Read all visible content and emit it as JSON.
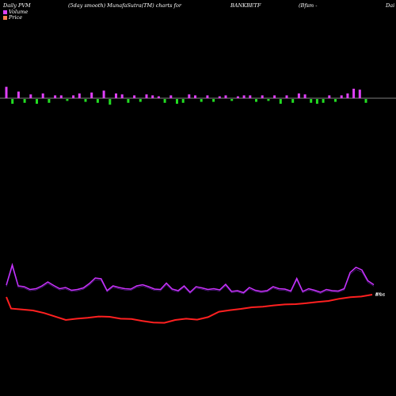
{
  "header": {
    "left": "Daily PVM",
    "middle": "(5day smooth) MunafaSutra(TM) charts for",
    "symbol": "BANKBETF",
    "right": "(Bfsm -",
    "far_right": "Dai"
  },
  "legend": [
    {
      "label": "Volume",
      "color": "#e040fb"
    },
    {
      "label": "Price",
      "color": "#ff7f50"
    }
  ],
  "colors": {
    "background": "#000000",
    "volume_up": "#e040fb",
    "volume_down": "#22dd22",
    "price_line": "#ff2020",
    "volume_line": "#cc33ff",
    "axis": "#ffffff"
  },
  "chart_data": {
    "type": "line",
    "bars": [
      {
        "dir": "up",
        "value": 12
      },
      {
        "dir": "down",
        "value": 5
      },
      {
        "dir": "up",
        "value": 7
      },
      {
        "dir": "down",
        "value": 4
      },
      {
        "dir": "up",
        "value": 4
      },
      {
        "dir": "down",
        "value": 5
      },
      {
        "dir": "up",
        "value": 5
      },
      {
        "dir": "down",
        "value": 4
      },
      {
        "dir": "up",
        "value": 3
      },
      {
        "dir": "up",
        "value": 3
      },
      {
        "dir": "down",
        "value": 2
      },
      {
        "dir": "up",
        "value": 3
      },
      {
        "dir": "up",
        "value": 5
      },
      {
        "dir": "down",
        "value": 3
      },
      {
        "dir": "up",
        "value": 6
      },
      {
        "dir": "down",
        "value": 4
      },
      {
        "dir": "up",
        "value": 8
      },
      {
        "dir": "down",
        "value": 6
      },
      {
        "dir": "up",
        "value": 5
      },
      {
        "dir": "up",
        "value": 4
      },
      {
        "dir": "down",
        "value": 4
      },
      {
        "dir": "up",
        "value": 3
      },
      {
        "dir": "down",
        "value": 3
      },
      {
        "dir": "up",
        "value": 4
      },
      {
        "dir": "up",
        "value": 3
      },
      {
        "dir": "up",
        "value": 2
      },
      {
        "dir": "down",
        "value": 4
      },
      {
        "dir": "up",
        "value": 3
      },
      {
        "dir": "down",
        "value": 5
      },
      {
        "dir": "down",
        "value": 4
      },
      {
        "dir": "up",
        "value": 4
      },
      {
        "dir": "up",
        "value": 3
      },
      {
        "dir": "down",
        "value": 3
      },
      {
        "dir": "up",
        "value": 3
      },
      {
        "dir": "down",
        "value": 3
      },
      {
        "dir": "up",
        "value": 2
      },
      {
        "dir": "up",
        "value": 3
      },
      {
        "dir": "down",
        "value": 2
      },
      {
        "dir": "up",
        "value": 2
      },
      {
        "dir": "up",
        "value": 3
      },
      {
        "dir": "up",
        "value": 3
      },
      {
        "dir": "down",
        "value": 3
      },
      {
        "dir": "up",
        "value": 3
      },
      {
        "dir": "down",
        "value": 2
      },
      {
        "dir": "up",
        "value": 3
      },
      {
        "dir": "down",
        "value": 5
      },
      {
        "dir": "up",
        "value": 3
      },
      {
        "dir": "down",
        "value": 4
      },
      {
        "dir": "up",
        "value": 5
      },
      {
        "dir": "up",
        "value": 4
      },
      {
        "dir": "down",
        "value": 4
      },
      {
        "dir": "down",
        "value": 5
      },
      {
        "dir": "down",
        "value": 4
      },
      {
        "dir": "up",
        "value": 3
      },
      {
        "dir": "down",
        "value": 3
      },
      {
        "dir": "up",
        "value": 3
      },
      {
        "dir": "up",
        "value": 5
      },
      {
        "dir": "up",
        "value": 10
      },
      {
        "dir": "up",
        "value": 9
      },
      {
        "dir": "down",
        "value": 4
      }
    ],
    "volume_line": [
      44,
      95,
      42,
      40,
      33,
      35,
      42,
      52,
      43,
      35,
      38,
      31,
      33,
      37,
      48,
      62,
      60,
      30,
      42,
      38,
      35,
      34,
      42,
      45,
      40,
      34,
      33,
      49,
      34,
      30,
      42,
      26,
      40,
      37,
      33,
      35,
      32,
      46,
      28,
      30,
      25,
      38,
      31,
      28,
      30,
      40,
      35,
      34,
      29,
      61,
      28,
      35,
      31,
      26,
      33,
      30,
      29,
      35,
      76,
      89,
      82,
      55,
      45
    ],
    "price_line": [
      44,
      47,
      50,
      58,
      69,
      80,
      76,
      73,
      69,
      70,
      76,
      77,
      83,
      88,
      89,
      80,
      76,
      79,
      71,
      54,
      49,
      45,
      40,
      38,
      34,
      31,
      30,
      27,
      23,
      20,
      13,
      8,
      6,
      0
    ],
    "end_labels": [
      "8K",
      "8.96"
    ]
  }
}
